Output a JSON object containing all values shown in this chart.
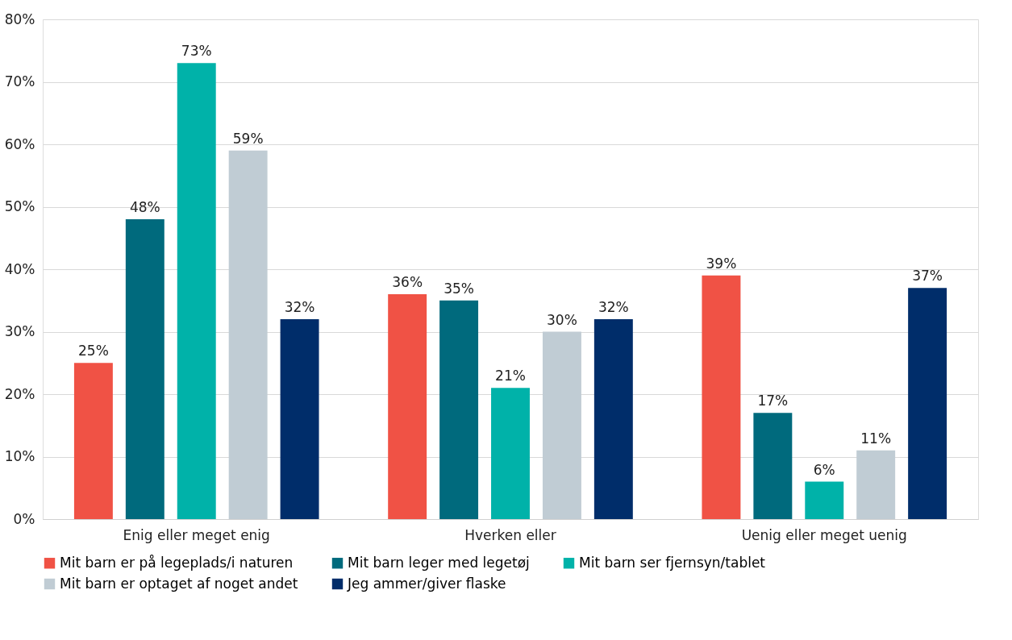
{
  "chart_data": {
    "type": "bar",
    "categories": [
      "Enig eller meget enig",
      "Hverken eller",
      "Uenig eller meget uenig"
    ],
    "series": [
      {
        "name": "Mit barn er på legeplads/i naturen",
        "color": "#f05245",
        "values": [
          25,
          36,
          39
        ],
        "value_labels": [
          "25%",
          "36%",
          "39%"
        ]
      },
      {
        "name": "Mit barn leger med legetøj",
        "color": "#006a7d",
        "values": [
          48,
          35,
          17
        ],
        "value_labels": [
          "48%",
          "35%",
          "17%"
        ]
      },
      {
        "name": "Mit barn ser fjernsyn/tablet",
        "color": "#00b2a9",
        "values": [
          73,
          21,
          6
        ],
        "value_labels": [
          "73%",
          "21%",
          "6%"
        ]
      },
      {
        "name": "Mit barn er optaget af noget andet",
        "color": "#c0ccd4",
        "values": [
          59,
          30,
          11
        ],
        "value_labels": [
          "59%",
          "30%",
          "11%"
        ]
      },
      {
        "name": "Jeg ammer/giver flaske",
        "color": "#002d6a",
        "values": [
          32,
          32,
          37
        ],
        "value_labels": [
          "32%",
          "32%",
          "37%"
        ]
      }
    ],
    "ylim": [
      0,
      80
    ],
    "yticks": [
      {
        "value": 0,
        "label": "0%"
      },
      {
        "value": 10,
        "label": "10%"
      },
      {
        "value": 20,
        "label": "20%"
      },
      {
        "value": 30,
        "label": "30%"
      },
      {
        "value": 40,
        "label": "40%"
      },
      {
        "value": 50,
        "label": "50%"
      },
      {
        "value": 60,
        "label": "60%"
      },
      {
        "value": 70,
        "label": "70%"
      },
      {
        "value": 80,
        "label": "80%"
      }
    ],
    "grid": "y",
    "legend": "bottom"
  }
}
